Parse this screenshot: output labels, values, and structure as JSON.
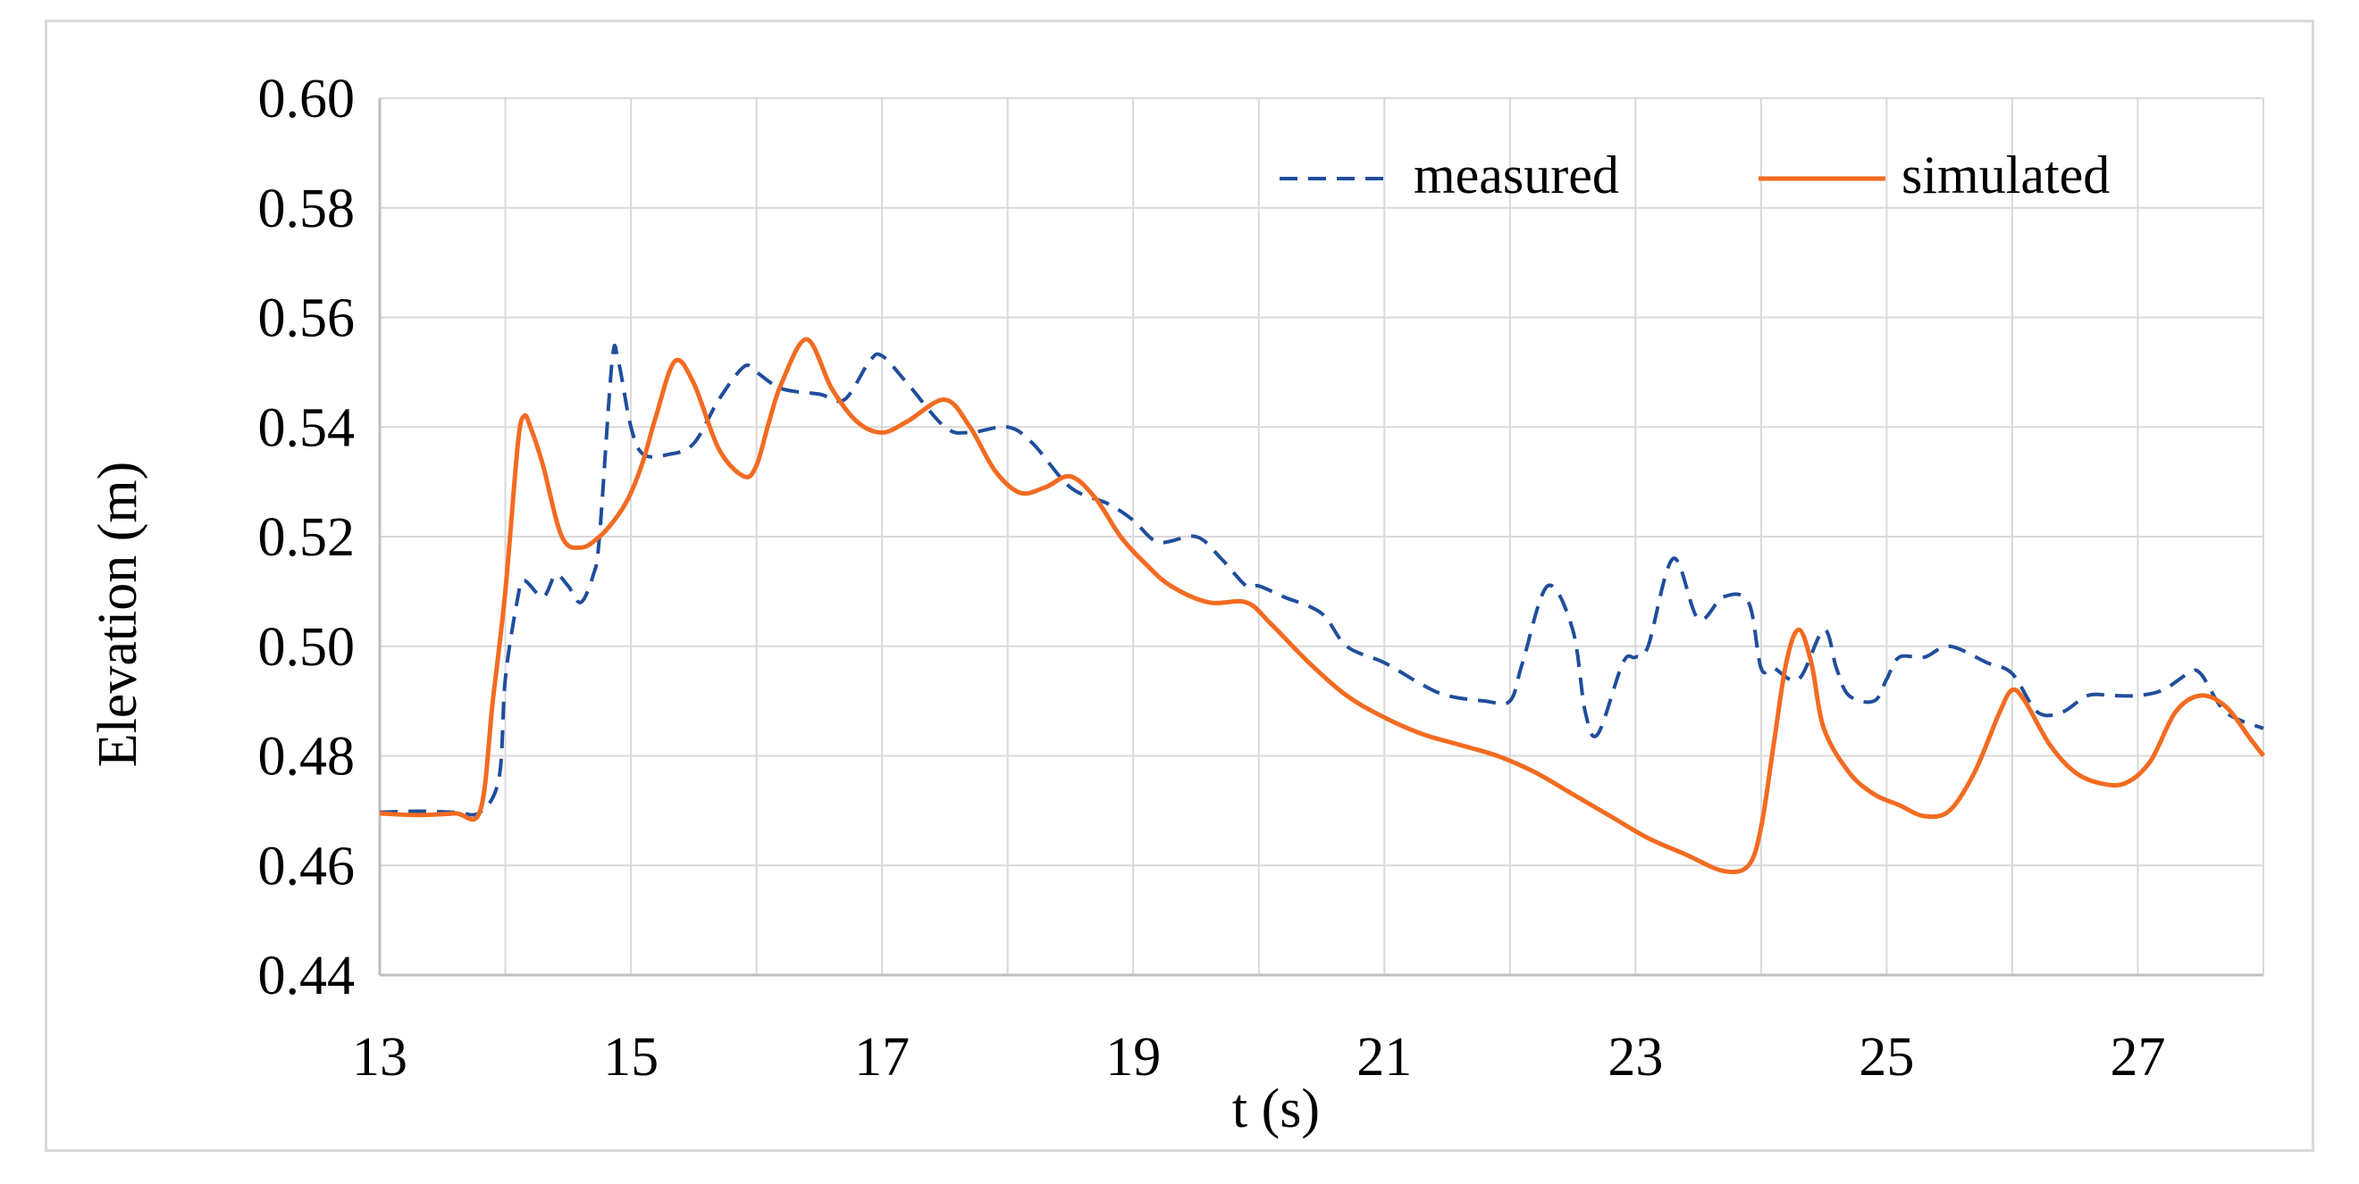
{
  "chart_data": {
    "type": "line",
    "title": "",
    "xlabel": "t (s)",
    "ylabel": "Elevation (m)",
    "xlim": [
      13,
      28
    ],
    "ylim": [
      0.44,
      0.6
    ],
    "x_ticks": [
      13,
      15,
      17,
      19,
      21,
      23,
      25,
      27
    ],
    "x_tick_labels": [
      "13",
      "15",
      "17",
      "19",
      "21",
      "23",
      "25",
      "27"
    ],
    "y_ticks": [
      0.44,
      0.46,
      0.48,
      0.5,
      0.52,
      0.54,
      0.56,
      0.58,
      0.6
    ],
    "y_tick_labels": [
      "0.44",
      "0.46",
      "0.48",
      "0.50",
      "0.52",
      "0.54",
      "0.56",
      "0.58",
      "0.60"
    ],
    "grid": true,
    "legend_position": "top-right",
    "series": [
      {
        "name": "measured",
        "style": "dashed",
        "color": "#1f4e9c",
        "x": [
          13.0,
          13.3,
          13.6,
          13.8,
          13.95,
          14.0,
          14.1,
          14.15,
          14.3,
          14.4,
          14.5,
          14.6,
          14.7,
          14.75,
          14.85,
          14.9,
          15.0,
          15.1,
          15.3,
          15.5,
          15.7,
          15.9,
          16.0,
          16.2,
          16.5,
          16.7,
          16.9,
          17.0,
          17.2,
          17.5,
          17.7,
          18.0,
          18.2,
          18.5,
          18.8,
          19.0,
          19.2,
          19.5,
          19.7,
          19.9,
          20.0,
          20.2,
          20.5,
          20.7,
          21.0,
          21.3,
          21.5,
          21.8,
          22.0,
          22.1,
          22.3,
          22.5,
          22.6,
          22.7,
          22.9,
          23.0,
          23.1,
          23.3,
          23.5,
          23.7,
          23.9,
          24.0,
          24.1,
          24.3,
          24.5,
          24.6,
          24.7,
          24.9,
          25.0,
          25.1,
          25.3,
          25.5,
          25.8,
          26.0,
          26.2,
          26.4,
          26.6,
          26.8,
          27.0,
          27.2,
          27.4,
          27.5,
          27.7,
          28.0
        ],
        "y": [
          0.4697,
          0.4699,
          0.4697,
          0.4697,
          0.476,
          0.494,
          0.509,
          0.512,
          0.509,
          0.513,
          0.511,
          0.508,
          0.513,
          0.52,
          0.552,
          0.552,
          0.54,
          0.535,
          0.535,
          0.537,
          0.545,
          0.551,
          0.55,
          0.547,
          0.546,
          0.545,
          0.552,
          0.553,
          0.548,
          0.54,
          0.539,
          0.54,
          0.537,
          0.529,
          0.526,
          0.523,
          0.519,
          0.52,
          0.516,
          0.511,
          0.511,
          0.509,
          0.506,
          0.5,
          0.497,
          0.493,
          0.491,
          0.49,
          0.49,
          0.497,
          0.511,
          0.503,
          0.488,
          0.484,
          0.497,
          0.498,
          0.5,
          0.516,
          0.505,
          0.509,
          0.508,
          0.496,
          0.496,
          0.494,
          0.503,
          0.496,
          0.491,
          0.49,
          0.494,
          0.498,
          0.498,
          0.5,
          0.497,
          0.495,
          0.488,
          0.488,
          0.491,
          0.491,
          0.491,
          0.492,
          0.495,
          0.495,
          0.488,
          0.485
        ]
      },
      {
        "name": "simulated",
        "style": "solid",
        "color": "#f36b21",
        "x": [
          13.0,
          13.3,
          13.6,
          13.8,
          13.9,
          14.0,
          14.1,
          14.15,
          14.2,
          14.3,
          14.45,
          14.6,
          14.75,
          14.9,
          15.0,
          15.1,
          15.2,
          15.35,
          15.5,
          15.7,
          15.9,
          16.0,
          16.1,
          16.2,
          16.4,
          16.6,
          16.8,
          17.0,
          17.2,
          17.5,
          17.7,
          17.9,
          18.1,
          18.3,
          18.5,
          18.7,
          18.9,
          19.1,
          19.3,
          19.6,
          19.9,
          20.1,
          20.4,
          20.7,
          21.0,
          21.3,
          21.6,
          21.9,
          22.2,
          22.5,
          22.8,
          23.1,
          23.4,
          23.7,
          23.9,
          24.0,
          24.1,
          24.2,
          24.3,
          24.4,
          24.5,
          24.7,
          24.9,
          25.1,
          25.3,
          25.5,
          25.7,
          25.9,
          26.0,
          26.1,
          26.3,
          26.5,
          26.7,
          26.9,
          27.1,
          27.3,
          27.5,
          27.7,
          27.9,
          28.0
        ],
        "y": [
          0.4695,
          0.4692,
          0.4695,
          0.47,
          0.49,
          0.51,
          0.537,
          0.542,
          0.54,
          0.533,
          0.52,
          0.518,
          0.52,
          0.524,
          0.528,
          0.534,
          0.542,
          0.552,
          0.548,
          0.536,
          0.531,
          0.533,
          0.541,
          0.548,
          0.556,
          0.547,
          0.541,
          0.539,
          0.541,
          0.545,
          0.54,
          0.532,
          0.528,
          0.529,
          0.531,
          0.527,
          0.52,
          0.515,
          0.511,
          0.508,
          0.508,
          0.504,
          0.497,
          0.491,
          0.487,
          0.484,
          0.482,
          0.48,
          0.477,
          0.473,
          0.469,
          0.465,
          0.462,
          0.459,
          0.46,
          0.467,
          0.482,
          0.497,
          0.503,
          0.497,
          0.485,
          0.477,
          0.473,
          0.471,
          0.469,
          0.47,
          0.477,
          0.488,
          0.492,
          0.49,
          0.482,
          0.477,
          0.475,
          0.475,
          0.479,
          0.488,
          0.491,
          0.489,
          0.483,
          0.48
        ]
      }
    ]
  }
}
